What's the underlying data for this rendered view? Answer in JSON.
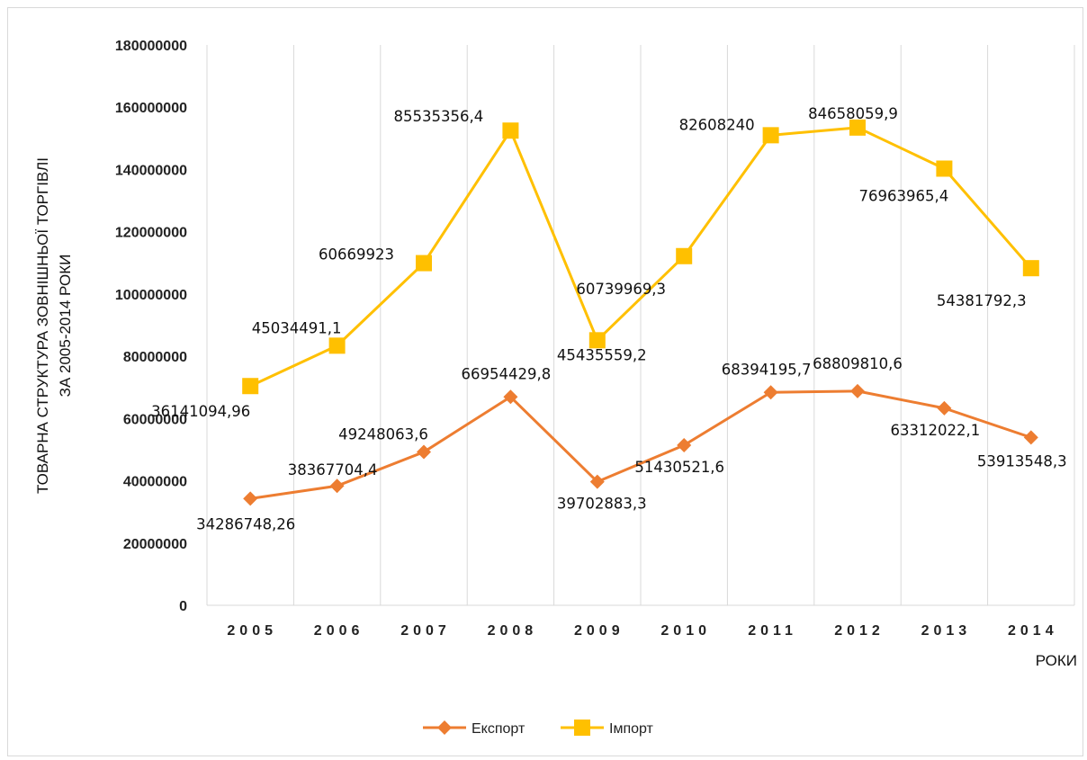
{
  "chart_data": {
    "type": "line",
    "categories": [
      "2005",
      "2006",
      "2007",
      "2008",
      "2009",
      "2010",
      "2011",
      "2012",
      "2013",
      "2014"
    ],
    "ylim": [
      0,
      180000000
    ],
    "yticks": [
      0,
      20000000,
      40000000,
      60000000,
      80000000,
      100000000,
      120000000,
      140000000,
      160000000,
      180000000
    ],
    "ylabel_lines": [
      "ТОВАРНА СТРУКТУРА ЗОВНІШНЬОЇ ТОРГІВЛІ",
      "ЗА 2005-2014 РОКИ"
    ],
    "xlabel": "РОКИ",
    "grid": "vertical",
    "legend_position": "bottom",
    "series": [
      {
        "name": "Експорт",
        "color": "#ED7D31",
        "marker": "diamond",
        "values": [
          34286748.26,
          38367704.4,
          49248063.6,
          66954429.8,
          39702883.3,
          51430521.6,
          68394195.7,
          68809810.6,
          63312022.1,
          53913548.3
        ],
        "labels": [
          "34286748,26",
          "38367704,4",
          "49248063,6",
          "66954429,8",
          "39702883,3",
          "51430521,6",
          "68394195,7",
          "68809810,6",
          "63312022,1",
          "53913548,3"
        ]
      },
      {
        "name": "Імпорт",
        "color": "#FFC000",
        "marker": "square",
        "values": [
          70427843.22,
          83402195.5,
          109917986.6,
          152489786.2,
          85138442.5,
          112170490.9,
          151002435.7,
          153467870.5,
          140275987.5,
          108295340.6
        ],
        "labels": [
          "36141094,96",
          "45034491,1",
          "60669923",
          "85535356,4",
          "45435559,2",
          "60739969,3",
          "82608240",
          "84658059,9",
          "76963965,4",
          "54381792,3"
        ]
      }
    ]
  }
}
